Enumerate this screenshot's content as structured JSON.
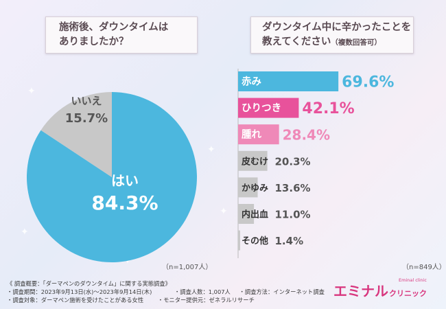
{
  "q1": {
    "line1": "施術後、ダウンタイムは",
    "line2": "ありましたか？",
    "n_label": "（n=1,007人）"
  },
  "q2": {
    "line1": "ダウンタイム中に辛かったことを",
    "line2": "教えてください",
    "line2_sub": "（複数回答可）",
    "n_label": "（n=849人）"
  },
  "footer": {
    "summary": "《 調査概要：「ダーマペンのダウンタイム」に関する実態調査》",
    "period": "調査期間：2023年9月13日(水)～2023年9月14日(木)",
    "count": "調査人数：1,007人",
    "method": "調査方法：インターネット調査",
    "target": "調査対象：ダーマペン施術を受けたことがある女性",
    "provider": "モニター提供元：ゼネラルリサーチ"
  },
  "brand": {
    "name": "エミナル",
    "sub": "クリニック",
    "tagline": "Eminal clinic"
  },
  "colors": {
    "blue": "#4cb7de",
    "grey": "#c8c8c8",
    "pink": "#e8529b",
    "lightpink": "#ef89b8",
    "text": "#555555"
  },
  "chart_data": [
    {
      "type": "pie",
      "title": "施術後、ダウンタイムはありましたか？",
      "labels": [
        "はい",
        "いいえ"
      ],
      "values": [
        84.3,
        15.7
      ],
      "value_labels": [
        "84.3%",
        "15.7%"
      ],
      "n": "n=1,007人"
    },
    {
      "type": "bar",
      "orientation": "horizontal",
      "title": "ダウンタイム中に辛かったことを教えてください（複数回答可）",
      "categories": [
        "赤み",
        "ひりつき",
        "腫れ",
        "皮むけ",
        "かゆみ",
        "内出血",
        "その他"
      ],
      "values": [
        69.6,
        42.1,
        28.4,
        20.3,
        13.6,
        11.0,
        1.4
      ],
      "value_labels": [
        "69.6%",
        "42.1%",
        "28.4%",
        "20.3%",
        "13.6%",
        "11.0%",
        "1.4%"
      ],
      "xlim": [
        0,
        100
      ],
      "n": "n=849人"
    }
  ]
}
